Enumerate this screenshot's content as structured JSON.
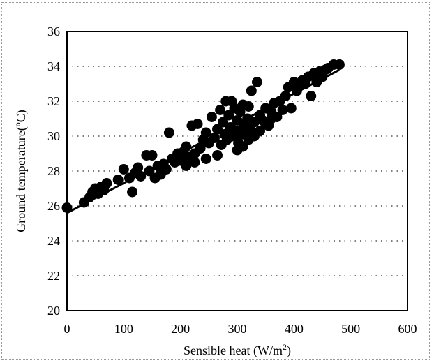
{
  "chart_data": {
    "type": "scatter",
    "xlabel": "Sensible heat (W/m",
    "xlabel_sup": "2",
    "xlabel_tail": ")",
    "ylabel": "Ground temperature(",
    "ylabel_sup": "o",
    "ylabel_tail": "C)",
    "xlim": [
      0,
      600
    ],
    "ylim": [
      20,
      36
    ],
    "xticks": [
      "0",
      "100",
      "200",
      "300",
      "400",
      "500",
      "600"
    ],
    "yticks": [
      "20",
      "22",
      "24",
      "26",
      "28",
      "30",
      "32",
      "34",
      "36"
    ],
    "grid": "horizontal-dotted",
    "legend": "none",
    "trendline": {
      "x": [
        0,
        480
      ],
      "y": [
        25.6,
        33.8
      ]
    },
    "point_color": "#000000",
    "points": [
      [
        0,
        25.9
      ],
      [
        30,
        26.2
      ],
      [
        40,
        26.5
      ],
      [
        45,
        26.8
      ],
      [
        50,
        27.0
      ],
      [
        55,
        26.7
      ],
      [
        60,
        27.1
      ],
      [
        65,
        26.9
      ],
      [
        70,
        27.3
      ],
      [
        90,
        27.5
      ],
      [
        100,
        28.1
      ],
      [
        110,
        27.6
      ],
      [
        115,
        26.8
      ],
      [
        120,
        27.9
      ],
      [
        125,
        28.2
      ],
      [
        130,
        27.7
      ],
      [
        140,
        28.9
      ],
      [
        145,
        28.0
      ],
      [
        150,
        28.9
      ],
      [
        155,
        27.6
      ],
      [
        160,
        28.3
      ],
      [
        165,
        27.8
      ],
      [
        170,
        28.4
      ],
      [
        175,
        28.1
      ],
      [
        180,
        30.2
      ],
      [
        185,
        28.7
      ],
      [
        190,
        28.5
      ],
      [
        195,
        29.0
      ],
      [
        200,
        28.6
      ],
      [
        205,
        29.1
      ],
      [
        210,
        29.4
      ],
      [
        215,
        28.8
      ],
      [
        220,
        30.6
      ],
      [
        225,
        29.0
      ],
      [
        230,
        30.7
      ],
      [
        235,
        29.3
      ],
      [
        240,
        29.8
      ],
      [
        245,
        30.2
      ],
      [
        250,
        29.6
      ],
      [
        255,
        31.1
      ],
      [
        260,
        29.9
      ],
      [
        265,
        30.4
      ],
      [
        270,
        31.5
      ],
      [
        272,
        29.5
      ],
      [
        275,
        30.8
      ],
      [
        278,
        30.1
      ],
      [
        280,
        32.0
      ],
      [
        282,
        29.8
      ],
      [
        285,
        31.2
      ],
      [
        288,
        30.5
      ],
      [
        290,
        32.0
      ],
      [
        292,
        30.0
      ],
      [
        295,
        31.6
      ],
      [
        298,
        30.3
      ],
      [
        300,
        30.9
      ],
      [
        302,
        29.6
      ],
      [
        305,
        31.4
      ],
      [
        308,
        30.1
      ],
      [
        310,
        31.8
      ],
      [
        312,
        30.6
      ],
      [
        315,
        30.2
      ],
      [
        318,
        31.0
      ],
      [
        320,
        31.7
      ],
      [
        322,
        30.4
      ],
      [
        325,
        32.6
      ],
      [
        330,
        30.8
      ],
      [
        335,
        33.1
      ],
      [
        340,
        31.2
      ],
      [
        345,
        30.9
      ],
      [
        350,
        31.6
      ],
      [
        355,
        30.6
      ],
      [
        360,
        31.4
      ],
      [
        365,
        31.9
      ],
      [
        370,
        31.1
      ],
      [
        375,
        32.0
      ],
      [
        380,
        31.5
      ],
      [
        385,
        32.3
      ],
      [
        390,
        32.8
      ],
      [
        395,
        31.6
      ],
      [
        400,
        33.1
      ],
      [
        405,
        32.6
      ],
      [
        410,
        32.9
      ],
      [
        415,
        33.2
      ],
      [
        420,
        33.0
      ],
      [
        425,
        33.4
      ],
      [
        430,
        32.3
      ],
      [
        435,
        33.6
      ],
      [
        440,
        33.1
      ],
      [
        445,
        33.7
      ],
      [
        450,
        33.4
      ],
      [
        455,
        33.8
      ],
      [
        460,
        33.9
      ],
      [
        470,
        34.1
      ],
      [
        480,
        34.1
      ],
      [
        265,
        28.9
      ],
      [
        245,
        28.7
      ],
      [
        225,
        28.5
      ],
      [
        210,
        28.3
      ],
      [
        300,
        29.2
      ],
      [
        310,
        29.4
      ],
      [
        320,
        29.8
      ],
      [
        330,
        30.0
      ],
      [
        340,
        30.3
      ],
      [
        350,
        30.7
      ],
      [
        360,
        31.0
      ]
    ]
  }
}
